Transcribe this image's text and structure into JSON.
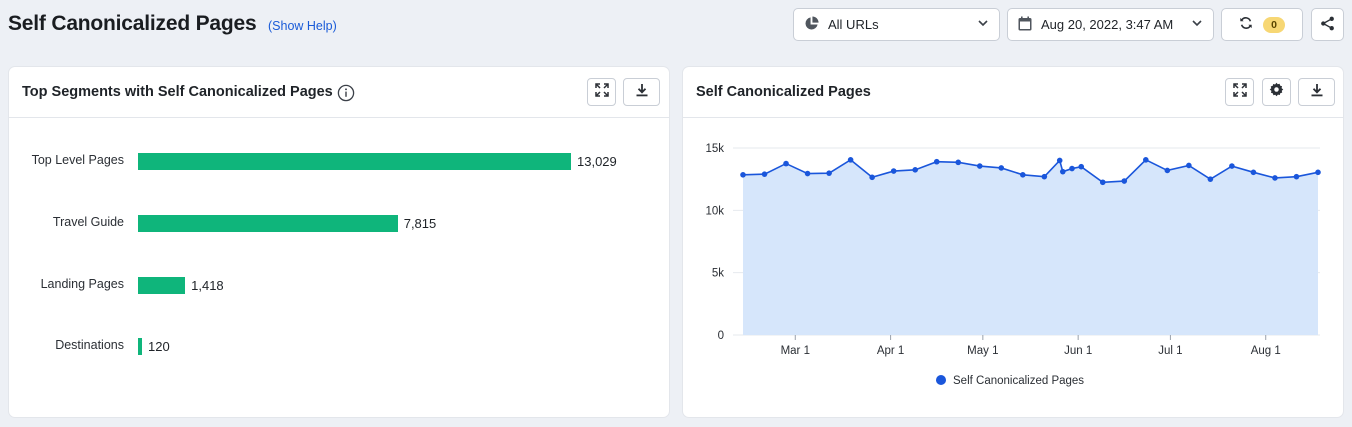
{
  "header": {
    "title": "Self Canonicalized Pages",
    "help_link": "(Show Help)"
  },
  "controls": {
    "url_filter": "All URLs",
    "date": "Aug 20, 2022, 3:47 AM",
    "refresh_count": "0"
  },
  "left_card": {
    "title": "Top Segments with Self Canonicalized Pages",
    "chart_data": {
      "type": "bar",
      "orientation": "horizontal",
      "categories": [
        "Top Level Pages",
        "Travel Guide",
        "Landing Pages",
        "Destinations"
      ],
      "values": [
        13029,
        7815,
        1418,
        120
      ],
      "value_labels": [
        "13,029",
        "7,815",
        "1,418",
        "120"
      ],
      "color": "#0fb57b"
    }
  },
  "right_card": {
    "title": "Self Canonicalized Pages",
    "chart_data": {
      "type": "area",
      "ylim": [
        0,
        15000
      ],
      "y_ticks": [
        "0",
        "5k",
        "10k",
        "15k"
      ],
      "x_ticks": [
        "Mar 1",
        "Apr 1",
        "May 1",
        "Jun 1",
        "Jul 1",
        "Aug 1"
      ],
      "color": "#1a56db",
      "fill": "#d6e6fb",
      "series": [
        {
          "name": "Self Canonicalized Pages",
          "x": [
            "2022-02-12",
            "2022-02-19",
            "2022-02-26",
            "2022-03-05",
            "2022-03-12",
            "2022-03-19",
            "2022-03-26",
            "2022-04-02",
            "2022-04-09",
            "2022-04-16",
            "2022-04-23",
            "2022-04-30",
            "2022-05-07",
            "2022-05-14",
            "2022-05-21",
            "2022-05-26",
            "2022-05-27",
            "2022-05-30",
            "2022-06-02",
            "2022-06-09",
            "2022-06-16",
            "2022-06-23",
            "2022-06-30",
            "2022-07-07",
            "2022-07-14",
            "2022-07-21",
            "2022-07-28",
            "2022-08-04",
            "2022-08-11",
            "2022-08-18"
          ],
          "values": [
            12850,
            12900,
            13750,
            12950,
            12980,
            14050,
            12650,
            13150,
            13250,
            13900,
            13850,
            13550,
            13400,
            12850,
            12700,
            14000,
            13100,
            13350,
            13500,
            12250,
            12350,
            14050,
            13200,
            13600,
            12500,
            13550,
            13050,
            12600,
            12700,
            13050
          ]
        }
      ]
    }
  }
}
